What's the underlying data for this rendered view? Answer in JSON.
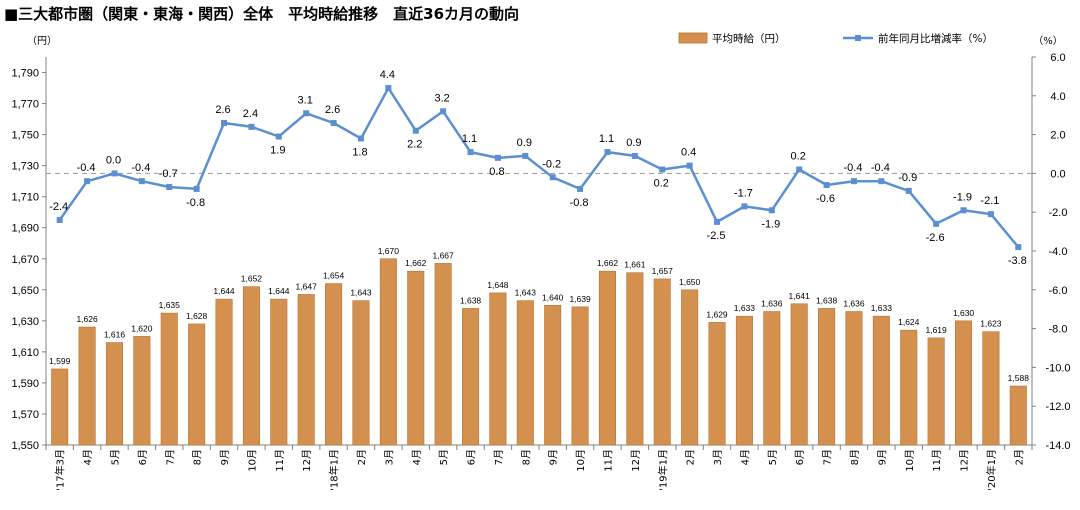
{
  "title": "■三大都市圏（関東・東海・関西）全体　平均時給推移　直近36カ月の動向",
  "chart_data": {
    "type": "bar+line",
    "categories": [
      "'17年3月",
      "4月",
      "5月",
      "6月",
      "7月",
      "8月",
      "9月",
      "10月",
      "11月",
      "12月",
      "'18年1月",
      "2月",
      "3月",
      "4月",
      "5月",
      "6月",
      "7月",
      "8月",
      "9月",
      "10月",
      "11月",
      "12月",
      "'19年1月",
      "2月",
      "3月",
      "4月",
      "5月",
      "6月",
      "7月",
      "8月",
      "9月",
      "10月",
      "11月",
      "12月",
      "'20年1月",
      "2月"
    ],
    "series": [
      {
        "name": "平均時給（円）",
        "type": "bar",
        "axis": "left",
        "color": "#d4904e",
        "values": [
          1599,
          1626,
          1616,
          1620,
          1635,
          1628,
          1644,
          1652,
          1644,
          1647,
          1654,
          1643,
          1670,
          1662,
          1667,
          1638,
          1648,
          1643,
          1640,
          1639,
          1662,
          1661,
          1657,
          1650,
          1629,
          1633,
          1636,
          1641,
          1638,
          1636,
          1633,
          1624,
          1619,
          1630,
          1623,
          1588
        ],
        "labels": [
          "1,599",
          "1,626",
          "1,616",
          "1,620",
          "1,635",
          "1,628",
          "1,644",
          "1,652",
          "1,644",
          "1,647",
          "1,654",
          "1,643",
          "1,670",
          "1,662",
          "1,667",
          "1,638",
          "1,648",
          "1,643",
          "1,640",
          "1,639",
          "1,662",
          "1,661",
          "1,657",
          "1,650",
          "1,629",
          "1,633",
          "1,636",
          "1,641",
          "1,638",
          "1,636",
          "1,633",
          "1,624",
          "1,619",
          "1,630",
          "1,623",
          "1,588"
        ]
      },
      {
        "name": "前年同月比増減率（%）",
        "type": "line",
        "axis": "right",
        "color": "#5b8fcf",
        "values": [
          -2.4,
          -0.4,
          0.0,
          -0.4,
          -0.7,
          -0.8,
          2.6,
          2.4,
          1.9,
          3.1,
          2.6,
          1.8,
          4.4,
          2.2,
          3.2,
          1.1,
          0.8,
          0.9,
          -0.2,
          -0.8,
          1.1,
          0.9,
          0.2,
          0.4,
          -2.5,
          -1.7,
          -1.9,
          0.2,
          -0.6,
          -0.4,
          -0.4,
          -0.9,
          -2.6,
          -1.9,
          -2.1,
          -3.8
        ],
        "labels": [
          "-2.4",
          "-0.4",
          "0.0",
          "-0.4",
          "-0.7",
          "-0.8",
          "2.6",
          "2.4",
          "1.9",
          "3.1",
          "2.6",
          "1.8",
          "4.4",
          "2.2",
          "3.2",
          "1.1",
          "0.8",
          "0.9",
          "-0.2",
          "-0.8",
          "1.1",
          "0.9",
          "0.2",
          "0.4",
          "-2.5",
          "-1.7",
          "-1.9",
          "0.2",
          "-0.6",
          "-0.4",
          "-0.4",
          "-0.9",
          "-2.6",
          "-1.9",
          "-2.1",
          "-3.8"
        ]
      }
    ],
    "left_axis": {
      "unit": "（円）",
      "ylim": [
        1550,
        1800
      ],
      "ticks": [
        1550,
        1570,
        1590,
        1610,
        1630,
        1650,
        1670,
        1690,
        1710,
        1730,
        1750,
        1770,
        1790
      ],
      "tick_labels": [
        "1,550",
        "1,570",
        "1,590",
        "1,610",
        "1,630",
        "1,650",
        "1,670",
        "1,690",
        "1,710",
        "1,730",
        "1,750",
        "1,770",
        "1,790"
      ]
    },
    "right_axis": {
      "unit": "（%）",
      "ylim": [
        -14.0,
        6.0
      ],
      "ticks": [
        -14,
        -12,
        -10,
        -8,
        -6,
        -4,
        -2,
        0,
        2,
        4,
        6
      ],
      "tick_labels": [
        "-14.0",
        "-12.0",
        "-10.0",
        "-8.0",
        "-6.0",
        "-4.0",
        "-2.0",
        "0.0",
        "2.0",
        "4.0",
        "6.0"
      ]
    },
    "reference_line": 0.0,
    "grid": false,
    "legend_position": "top-right"
  }
}
